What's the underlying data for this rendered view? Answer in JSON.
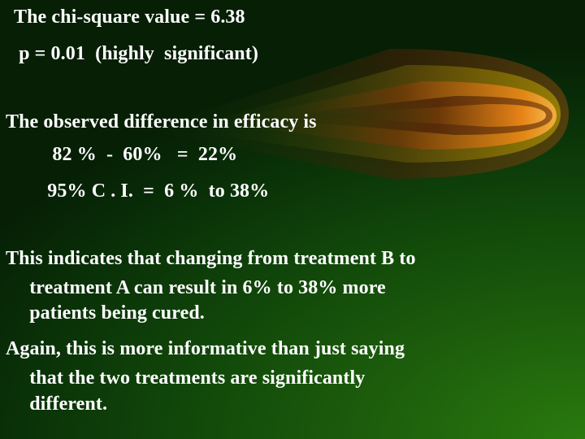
{
  "slide": {
    "lines": [
      "The chi-square value = 6.38",
      " p = 0.01  (highly  significant)",
      "The observed difference in efficacy is",
      "    82 %  -  60%   =  22%",
      "   95% C . I.  =  6 %  to 38%",
      "This indicates that changing from treatment B to",
      "  treatment A can result in 6% to 38% more",
      "  patients being cured.",
      "Again, this is more informative than just saying",
      "  that the two treatments are significantly",
      "  different."
    ]
  },
  "colors": {
    "text": "#ffffff",
    "background_dark": "#061f05",
    "background_light": "#2a7a0e",
    "stripe_orange": "#e07a10",
    "stripe_gold": "#c9a400"
  }
}
